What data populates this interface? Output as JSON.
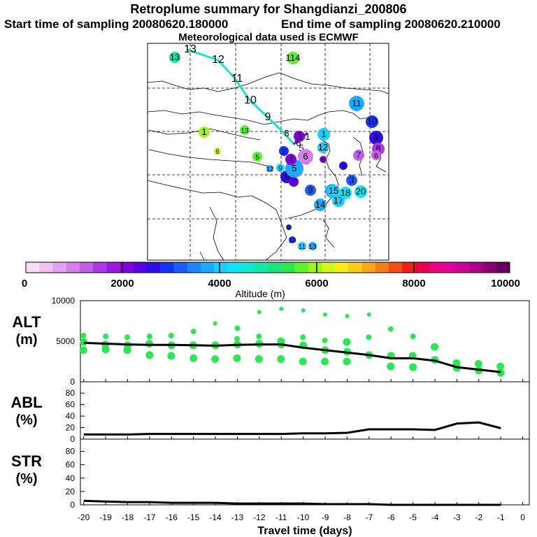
{
  "header": {
    "title": "Retroplume summary for Shangdianzi_200806",
    "start": "Start time of sampling 20080620.180000",
    "end": "End time of sampling 20080620.210000",
    "met": "Meteorological data used is ECMWF"
  },
  "colorbar": {
    "label": "Altitude (m)",
    "ticks": [
      "0",
      "2000",
      "4000",
      "6000",
      "8000",
      "10000"
    ],
    "colors": [
      "#f6dcf6",
      "#efc2f1",
      "#e3a4ef",
      "#d47fec",
      "#c25de8",
      "#ad38e3",
      "#9818df",
      "#8300dc",
      "#5a00e0",
      "#2d0ee8",
      "#1534f0",
      "#1d5cf7",
      "#1f84fb",
      "#1ea9ff",
      "#1ecdff",
      "#13e3f2",
      "#14e7cf",
      "#18e5a6",
      "#1ee27c",
      "#2de654",
      "#5ef02c",
      "#9cf51d",
      "#d5f81c",
      "#f8ec1c",
      "#f9cc1a",
      "#f7a719",
      "#f47e19",
      "#f25019",
      "#ee2117",
      "#e8004a",
      "#e8007d",
      "#df0098",
      "#c80096",
      "#a80088",
      "#87006f",
      "#65005a"
    ]
  },
  "map": {
    "trajectory_labels": [
      "13",
      "12",
      "11",
      "10",
      "9",
      "8",
      "7",
      "6",
      "5",
      "4",
      "3",
      "2",
      "1"
    ],
    "cluster_labels": [
      "13",
      "114",
      "11",
      "10",
      "9",
      "8",
      "7",
      "6",
      "5",
      "4",
      "3",
      "2",
      "1",
      "12",
      "15",
      "14",
      "17",
      "18",
      "20",
      "9",
      "8",
      "7",
      "6",
      "5",
      "4",
      "3",
      "2",
      "1",
      "6",
      "5",
      "9",
      "9",
      "13",
      "11",
      "10",
      "12",
      "13"
    ]
  },
  "chart_data": [
    {
      "type": "line",
      "panel": "ALT",
      "ylabel": "ALT (m)",
      "ylim": [
        0,
        10000
      ],
      "yticks": [
        "10000",
        "5000",
        "0"
      ],
      "series": [
        {
          "name": "mean altitude",
          "x": [
            -20,
            -19,
            -18,
            -17,
            -16,
            -15,
            -14,
            -13,
            -12,
            -11,
            -10,
            -9,
            -8,
            -7,
            -6,
            -5,
            -4,
            -3,
            -2,
            -1
          ],
          "values": [
            4800,
            4700,
            4600,
            4550,
            4550,
            4500,
            4450,
            4550,
            4600,
            4600,
            4200,
            3900,
            3600,
            3300,
            2900,
            2900,
            2600,
            1800,
            1500,
            1200
          ]
        }
      ],
      "cluster_points": {
        "x": [
          -20,
          -20,
          -20,
          -19,
          -19,
          -19,
          -18,
          -18,
          -18,
          -17,
          -17,
          -17,
          -16,
          -16,
          -16,
          -15,
          -15,
          -15,
          -14,
          -14,
          -14,
          -13,
          -13,
          -13,
          -13,
          -12,
          -12,
          -12,
          -12,
          -11,
          -11,
          -11,
          -11,
          -10,
          -10,
          -10,
          -10,
          -9,
          -9,
          -9,
          -9,
          -8,
          -8,
          -8,
          -8,
          -7,
          -7,
          -7,
          -6,
          -6,
          -6,
          -5,
          -5,
          -5,
          -4,
          -4,
          -3,
          -3,
          -2,
          -2,
          -1,
          -1
        ],
        "y": [
          5700,
          4900,
          3900,
          5600,
          4600,
          4000,
          5500,
          4500,
          3900,
          5600,
          4700,
          3300,
          5700,
          4500,
          3200,
          6200,
          4500,
          2900,
          7200,
          4500,
          2800,
          6600,
          5300,
          4600,
          2900,
          8600,
          5600,
          4700,
          2800,
          9000,
          5000,
          4600,
          2800,
          8800,
          5500,
          4500,
          2500,
          8300,
          5100,
          3900,
          2500,
          8100,
          4900,
          3700,
          2500,
          8300,
          5500,
          3300,
          6500,
          3200,
          1900,
          5600,
          3200,
          1800,
          4300,
          2700,
          2300,
          1700,
          2200,
          1400,
          1900,
          1100
        ]
      }
    },
    {
      "type": "line",
      "panel": "ABL",
      "ylabel": "ABL (%)",
      "ylim": [
        0,
        90
      ],
      "yticks": [
        "80",
        "60",
        "40",
        "20",
        "0"
      ],
      "series": [
        {
          "name": "fraction in boundary layer",
          "x": [
            -20,
            -19,
            -18,
            -17,
            -16,
            -15,
            -14,
            -13,
            -12,
            -11,
            -10,
            -9,
            -8,
            -7,
            -6,
            -5,
            -4,
            -3,
            -2,
            -1
          ],
          "values": [
            8,
            8,
            8,
            9,
            9,
            9,
            9,
            9,
            9,
            9,
            10,
            10,
            11,
            17,
            17,
            17,
            16,
            27,
            29,
            19
          ]
        }
      ]
    },
    {
      "type": "line",
      "panel": "STR",
      "ylabel": "STR (%)",
      "ylim": [
        0,
        90
      ],
      "yticks": [
        "80",
        "60",
        "40",
        "20",
        "0"
      ],
      "xlabel": "Travel time (days)",
      "xticks": [
        "-20",
        "-19",
        "-18",
        "-17",
        "-16",
        "-15",
        "-14",
        "-13",
        "-12",
        "-11",
        "-10",
        "-9",
        "-8",
        "-7",
        "-6",
        "-5",
        "-4",
        "-3",
        "-2",
        "-1",
        "0"
      ],
      "series": [
        {
          "name": "fraction in stratosphere",
          "x": [
            -20,
            -19,
            -18,
            -17,
            -16,
            -15,
            -14,
            -13,
            -12,
            -11,
            -10,
            -9,
            -8,
            -7,
            -6,
            -5,
            -4,
            -3,
            -2,
            -1
          ],
          "values": [
            6,
            5,
            4,
            4,
            3,
            3,
            3,
            2,
            2,
            2,
            2,
            1,
            1,
            1,
            0,
            0,
            0,
            0,
            0,
            0
          ]
        }
      ]
    }
  ]
}
